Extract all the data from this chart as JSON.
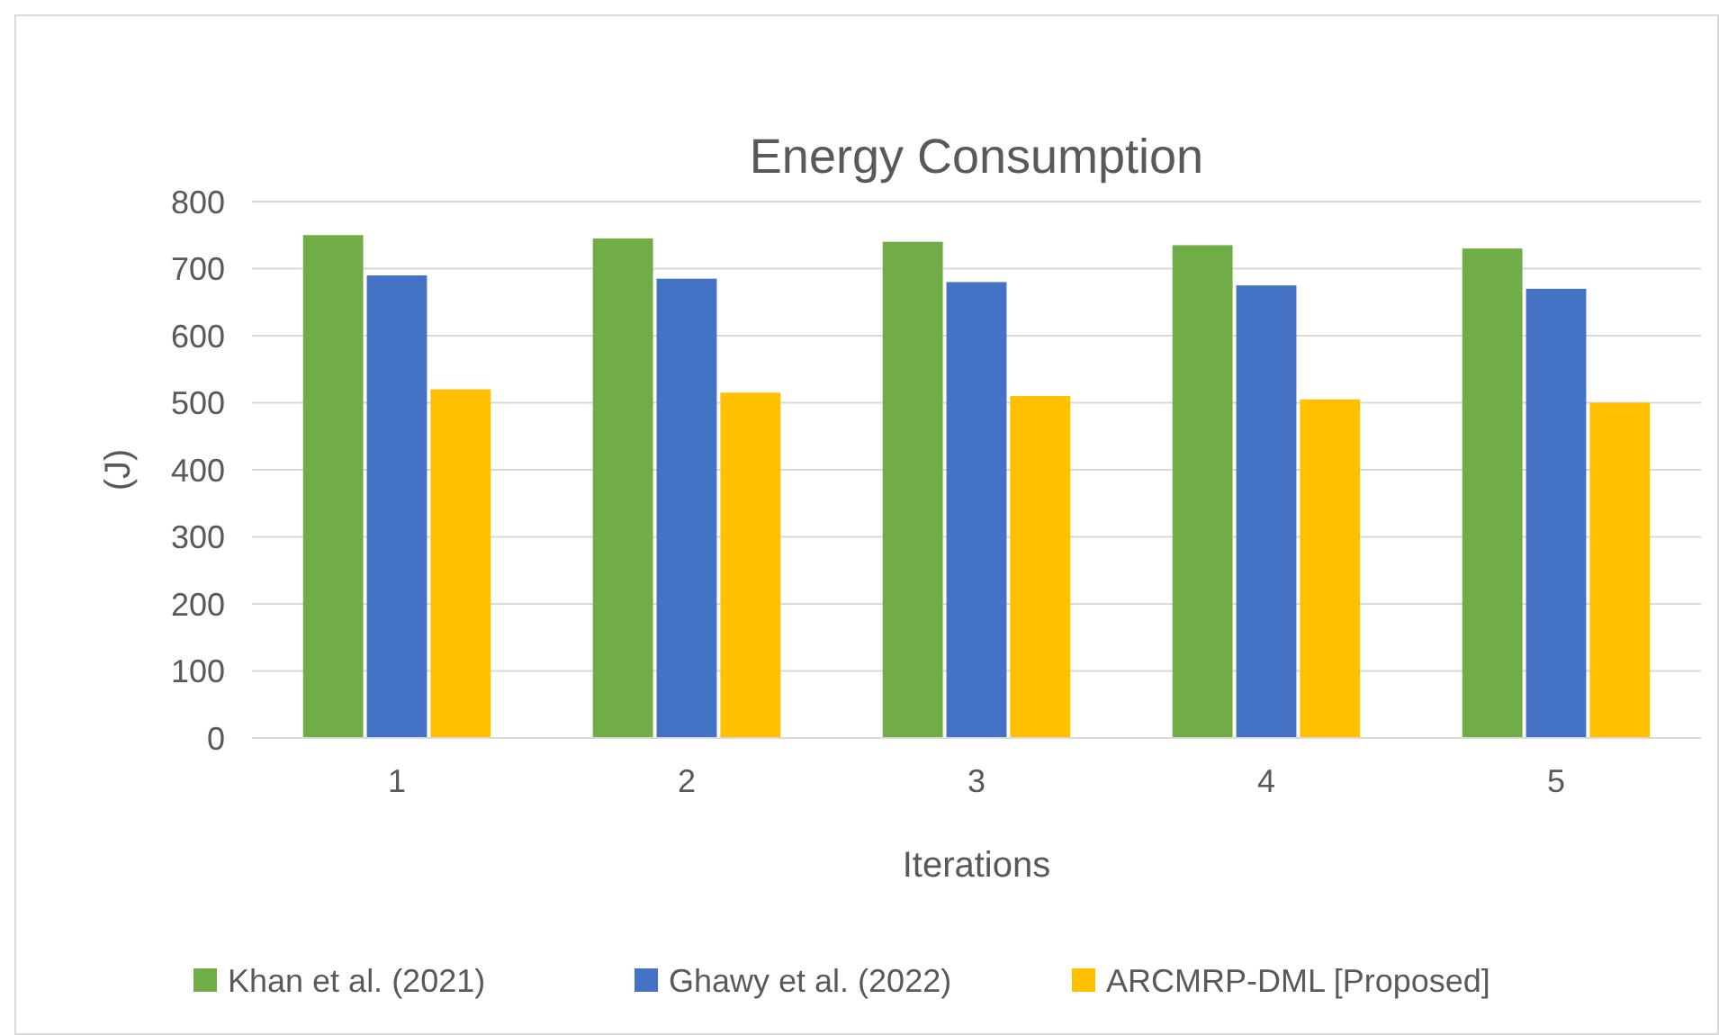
{
  "chart_data": {
    "type": "bar",
    "title": "Energy Consumption",
    "xlabel": "Iterations",
    "ylabel": "(J)",
    "categories": [
      "1",
      "2",
      "3",
      "4",
      "5"
    ],
    "series": [
      {
        "name": "Khan et al. (2021)",
        "color": "#70ad47",
        "values": [
          750,
          745,
          740,
          735,
          730
        ]
      },
      {
        "name": "Ghawy et al. (2022)",
        "color": "#4472c4",
        "values": [
          690,
          685,
          680,
          675,
          670
        ]
      },
      {
        "name": "ARCMRP-DML [Proposed]",
        "color": "#ffc000",
        "values": [
          520,
          515,
          510,
          505,
          500
        ]
      }
    ],
    "ylim": [
      0,
      800
    ],
    "yticks": [
      0,
      100,
      200,
      300,
      400,
      500,
      600,
      700,
      800
    ],
    "grid": "y",
    "legend": "bottom"
  }
}
